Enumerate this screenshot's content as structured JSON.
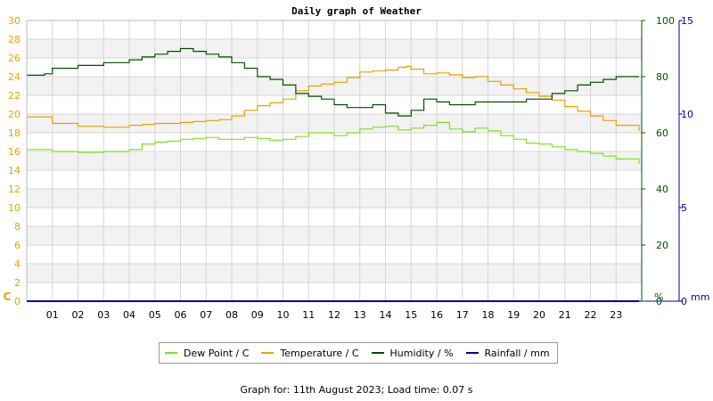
{
  "chart_data": {
    "type": "line",
    "title": "Daily graph of Weather",
    "x_ticks": [
      "01",
      "02",
      "03",
      "04",
      "05",
      "06",
      "07",
      "08",
      "09",
      "10",
      "11",
      "12",
      "13",
      "14",
      "15",
      "16",
      "17",
      "18",
      "19",
      "20",
      "21",
      "22",
      "23"
    ],
    "xlim": [
      0,
      24
    ],
    "axes": {
      "left": {
        "unit": "C",
        "range": [
          0,
          30
        ],
        "ticks": [
          0,
          2,
          4,
          6,
          8,
          10,
          12,
          14,
          16,
          18,
          20,
          22,
          24,
          26,
          28,
          30
        ],
        "color": "#e8a200"
      },
      "right1": {
        "unit": "%",
        "range": [
          0,
          100
        ],
        "ticks": [
          0,
          20,
          40,
          60,
          80,
          100
        ],
        "color": "#005000"
      },
      "right2": {
        "unit": "mm",
        "range": [
          0,
          15
        ],
        "ticks": [
          0,
          5,
          10,
          15
        ],
        "color": "#0000a0"
      }
    },
    "grid": true,
    "legend_position": "bottom",
    "series": [
      {
        "name": "Dew Point / C",
        "axis": "left",
        "color": "#80e020",
        "x": [
          0,
          1,
          2,
          3,
          4,
          4.5,
          5,
          5.5,
          6,
          6.5,
          7,
          7.5,
          8,
          8.5,
          9,
          9.5,
          10,
          10.5,
          11,
          11.5,
          12,
          12.5,
          13,
          13.5,
          14,
          14.5,
          15,
          15.5,
          16,
          16.5,
          17,
          17.5,
          18,
          18.5,
          19,
          19.5,
          20,
          20.5,
          21,
          21.5,
          22,
          22.5,
          23,
          23.9
        ],
        "y": [
          16.2,
          16.0,
          15.9,
          16.0,
          16.2,
          16.8,
          17.0,
          17.1,
          17.3,
          17.4,
          17.5,
          17.3,
          17.3,
          17.5,
          17.4,
          17.2,
          17.3,
          17.6,
          18.0,
          18.0,
          17.7,
          18.0,
          18.4,
          18.6,
          18.7,
          18.3,
          18.5,
          18.8,
          19.1,
          18.4,
          18.1,
          18.5,
          18.2,
          17.7,
          17.3,
          16.9,
          16.8,
          16.5,
          16.2,
          16.0,
          15.8,
          15.5,
          15.2,
          14.7
        ]
      },
      {
        "name": "Temperature / C",
        "axis": "left",
        "color": "#e8a200",
        "x": [
          0,
          1,
          2,
          3,
          3.5,
          4,
          4.5,
          5,
          5.5,
          6,
          6.5,
          7,
          7.5,
          8,
          8.5,
          9,
          9.5,
          10,
          10.5,
          11,
          11.5,
          12,
          12.5,
          13,
          13.5,
          14,
          14.5,
          14.8,
          15,
          15.5,
          16,
          16.5,
          17,
          17.5,
          18,
          18.5,
          19,
          19.5,
          20,
          20.5,
          21,
          21.5,
          22,
          22.5,
          23,
          23.9
        ],
        "y": [
          19.7,
          19.0,
          18.7,
          18.6,
          18.6,
          18.8,
          18.9,
          19.0,
          19.0,
          19.1,
          19.2,
          19.3,
          19.4,
          19.8,
          20.4,
          20.9,
          21.2,
          21.6,
          22.5,
          23.0,
          23.2,
          23.4,
          23.9,
          24.5,
          24.6,
          24.7,
          25.0,
          25.1,
          24.8,
          24.3,
          24.4,
          24.2,
          23.9,
          24.0,
          23.5,
          23.1,
          22.7,
          22.3,
          21.9,
          21.5,
          20.8,
          20.3,
          19.8,
          19.3,
          18.8,
          18.2
        ]
      },
      {
        "name": "Humidity / %",
        "axis": "right1",
        "color": "#005000",
        "x": [
          0,
          0.7,
          1,
          2,
          3,
          4,
          4.5,
          5,
          5.5,
          6,
          6.5,
          7,
          7.5,
          8,
          8.5,
          9,
          9.5,
          10,
          10.5,
          11,
          11.5,
          12,
          12.5,
          13,
          13.5,
          14,
          14.5,
          15,
          15.5,
          16,
          16.5,
          17,
          17.5,
          18,
          18.5,
          19,
          19.5,
          20,
          20.5,
          21,
          21.5,
          22,
          22.5,
          23,
          23.9
        ],
        "y": [
          80.5,
          81,
          83,
          84,
          85,
          86,
          87,
          88,
          89,
          90,
          89,
          88,
          87,
          85,
          83,
          80,
          79,
          77,
          74,
          73,
          72,
          70,
          69,
          69,
          70,
          67,
          66,
          68,
          72,
          71,
          70,
          70,
          71,
          71,
          71,
          71,
          72,
          72,
          74,
          75,
          77,
          78,
          79,
          80,
          80
        ]
      },
      {
        "name": "Rainfall / mm",
        "axis": "right2",
        "color": "#0000a0",
        "x": [
          0,
          23.9
        ],
        "y": [
          0,
          0
        ]
      }
    ]
  },
  "footer": {
    "text": "Graph for: 11th August 2023; Load time: 0.07 s"
  }
}
